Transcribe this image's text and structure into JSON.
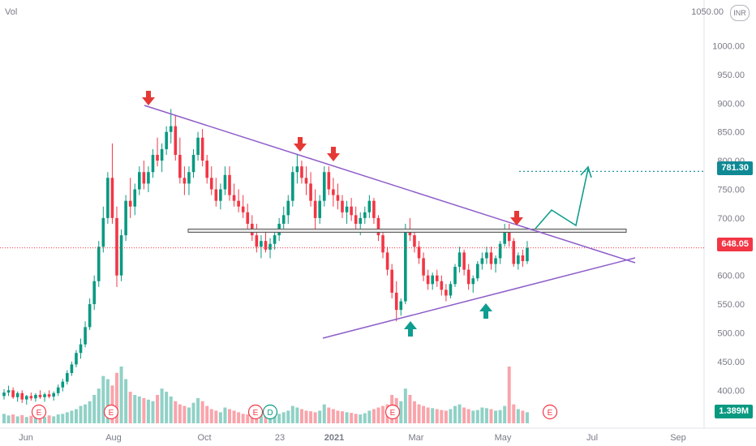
{
  "header": {
    "volume_label": "Vol",
    "currency": "INR"
  },
  "chart_data": {
    "type": "candlestick",
    "x_labels": [
      "Jun",
      "Aug",
      "Oct",
      "23",
      "2021",
      "Mar",
      "May",
      "Jul",
      "Sep"
    ],
    "y_ticks": [
      "1000.00",
      "950.00",
      "900.00",
      "850.00",
      "800.00",
      "750.00",
      "700.00",
      "650.00",
      "600.00",
      "550.00",
      "500.00",
      "450.00",
      "400.00"
    ],
    "y_top_tick": "1050.00",
    "ylim": [
      370,
      1060
    ],
    "price_labels": {
      "target": "781.30",
      "last": "648.05",
      "volume": "1.389M"
    },
    "levels": {
      "target": 781.3,
      "last": 648.05,
      "resistance": 678
    },
    "event_markers": [
      "E",
      "E",
      "E",
      "D",
      "E",
      "E"
    ],
    "candles": [
      [
        0,
        390,
        402,
        384,
        396
      ],
      [
        1,
        396,
        408,
        390,
        400
      ],
      [
        2,
        400,
        405,
        385,
        388
      ],
      [
        3,
        388,
        398,
        380,
        395
      ],
      [
        4,
        395,
        400,
        378,
        384
      ],
      [
        5,
        384,
        392,
        375,
        390
      ],
      [
        6,
        390,
        396,
        382,
        386
      ],
      [
        7,
        386,
        395,
        380,
        392
      ],
      [
        8,
        392,
        400,
        385,
        388
      ],
      [
        9,
        388,
        396,
        380,
        393
      ],
      [
        10,
        393,
        400,
        386,
        389
      ],
      [
        11,
        389,
        398,
        382,
        395
      ],
      [
        12,
        395,
        410,
        390,
        405
      ],
      [
        13,
        405,
        420,
        398,
        415
      ],
      [
        14,
        415,
        435,
        410,
        430
      ],
      [
        15,
        430,
        450,
        425,
        445
      ],
      [
        16,
        445,
        470,
        440,
        465
      ],
      [
        17,
        465,
        490,
        455,
        480
      ],
      [
        18,
        480,
        520,
        475,
        510
      ],
      [
        19,
        510,
        560,
        505,
        550
      ],
      [
        20,
        550,
        600,
        540,
        590
      ],
      [
        21,
        590,
        660,
        580,
        650
      ],
      [
        22,
        650,
        720,
        640,
        700
      ],
      [
        23,
        700,
        780,
        690,
        770
      ],
      [
        24,
        770,
        830,
        690,
        700
      ],
      [
        25,
        700,
        720,
        580,
        600
      ],
      [
        26,
        600,
        680,
        590,
        670
      ],
      [
        27,
        670,
        740,
        660,
        730
      ],
      [
        28,
        730,
        770,
        700,
        720
      ],
      [
        29,
        720,
        760,
        705,
        750
      ],
      [
        30,
        750,
        790,
        740,
        780
      ],
      [
        31,
        780,
        800,
        750,
        760
      ],
      [
        32,
        760,
        790,
        745,
        780
      ],
      [
        33,
        780,
        820,
        770,
        810
      ],
      [
        34,
        810,
        840,
        790,
        800
      ],
      [
        35,
        800,
        830,
        780,
        820
      ],
      [
        36,
        820,
        860,
        810,
        850
      ],
      [
        37,
        850,
        890,
        830,
        860
      ],
      [
        38,
        860,
        880,
        800,
        810
      ],
      [
        39,
        810,
        840,
        760,
        770
      ],
      [
        40,
        770,
        790,
        740,
        760
      ],
      [
        41,
        760,
        790,
        740,
        780
      ],
      [
        42,
        780,
        820,
        770,
        810
      ],
      [
        43,
        810,
        850,
        800,
        840
      ],
      [
        44,
        840,
        855,
        790,
        800
      ],
      [
        45,
        800,
        810,
        760,
        770
      ],
      [
        46,
        770,
        790,
        740,
        750
      ],
      [
        47,
        750,
        770,
        720,
        730
      ],
      [
        48,
        730,
        760,
        715,
        750
      ],
      [
        49,
        750,
        790,
        740,
        775
      ],
      [
        50,
        775,
        790,
        730,
        740
      ],
      [
        51,
        740,
        760,
        720,
        730
      ],
      [
        52,
        730,
        750,
        710,
        720
      ],
      [
        53,
        720,
        740,
        700,
        710
      ],
      [
        54,
        710,
        725,
        680,
        690
      ],
      [
        55,
        690,
        705,
        660,
        670
      ],
      [
        56,
        670,
        690,
        640,
        650
      ],
      [
        57,
        650,
        670,
        630,
        660
      ],
      [
        58,
        660,
        680,
        640,
        645
      ],
      [
        59,
        645,
        665,
        630,
        655
      ],
      [
        60,
        655,
        680,
        645,
        670
      ],
      [
        61,
        670,
        700,
        660,
        690
      ],
      [
        62,
        690,
        720,
        680,
        705
      ],
      [
        63,
        705,
        740,
        690,
        730
      ],
      [
        64,
        730,
        790,
        720,
        780
      ],
      [
        65,
        780,
        810,
        760,
        790
      ],
      [
        66,
        790,
        800,
        760,
        770
      ],
      [
        67,
        770,
        790,
        740,
        760
      ],
      [
        68,
        760,
        780,
        720,
        730
      ],
      [
        69,
        730,
        750,
        680,
        700
      ],
      [
        70,
        700,
        740,
        690,
        730
      ],
      [
        71,
        730,
        790,
        720,
        780
      ],
      [
        72,
        780,
        790,
        740,
        750
      ],
      [
        73,
        750,
        770,
        720,
        740
      ],
      [
        74,
        740,
        760,
        715,
        730
      ],
      [
        75,
        730,
        740,
        700,
        710
      ],
      [
        76,
        710,
        730,
        690,
        720
      ],
      [
        77,
        720,
        735,
        695,
        705
      ],
      [
        78,
        705,
        720,
        680,
        690
      ],
      [
        79,
        690,
        710,
        670,
        700
      ],
      [
        80,
        700,
        720,
        690,
        710
      ],
      [
        81,
        710,
        740,
        700,
        730
      ],
      [
        82,
        730,
        735,
        690,
        700
      ],
      [
        83,
        700,
        705,
        660,
        670
      ],
      [
        84,
        670,
        680,
        630,
        640
      ],
      [
        85,
        640,
        650,
        600,
        610
      ],
      [
        86,
        610,
        620,
        560,
        570
      ],
      [
        87,
        570,
        590,
        520,
        540
      ],
      [
        88,
        540,
        560,
        530,
        555
      ],
      [
        89,
        555,
        690,
        550,
        680
      ],
      [
        90,
        680,
        700,
        660,
        670
      ],
      [
        91,
        670,
        680,
        640,
        650
      ],
      [
        92,
        650,
        660,
        620,
        630
      ],
      [
        93,
        630,
        640,
        590,
        600
      ],
      [
        94,
        600,
        610,
        575,
        585
      ],
      [
        95,
        585,
        605,
        575,
        600
      ],
      [
        96,
        600,
        610,
        580,
        590
      ],
      [
        97,
        590,
        600,
        565,
        575
      ],
      [
        98,
        575,
        585,
        555,
        565
      ],
      [
        99,
        565,
        590,
        560,
        585
      ],
      [
        100,
        585,
        620,
        580,
        615
      ],
      [
        101,
        615,
        650,
        605,
        640
      ],
      [
        102,
        640,
        645,
        600,
        610
      ],
      [
        103,
        610,
        620,
        575,
        585
      ],
      [
        104,
        585,
        600,
        570,
        595
      ],
      [
        105,
        595,
        625,
        590,
        620
      ],
      [
        106,
        620,
        640,
        610,
        630
      ],
      [
        107,
        630,
        650,
        620,
        640
      ],
      [
        108,
        640,
        650,
        610,
        620
      ],
      [
        109,
        620,
        635,
        605,
        630
      ],
      [
        110,
        630,
        660,
        620,
        655
      ],
      [
        111,
        655,
        690,
        650,
        680
      ],
      [
        112,
        680,
        690,
        650,
        660
      ],
      [
        113,
        660,
        665,
        615,
        620
      ],
      [
        114,
        620,
        640,
        610,
        635
      ],
      [
        115,
        635,
        645,
        615,
        625
      ],
      [
        116,
        625,
        660,
        620,
        648
      ]
    ],
    "volume": [
      30,
      25,
      28,
      22,
      26,
      20,
      24,
      18,
      22,
      20,
      25,
      22,
      28,
      30,
      35,
      40,
      45,
      55,
      60,
      70,
      90,
      110,
      150,
      140,
      120,
      160,
      180,
      140,
      100,
      90,
      85,
      80,
      75,
      70,
      90,
      110,
      100,
      85,
      70,
      60,
      55,
      50,
      65,
      80,
      70,
      55,
      45,
      40,
      35,
      50,
      45,
      40,
      35,
      30,
      28,
      32,
      30,
      28,
      26,
      25,
      24,
      30,
      35,
      40,
      55,
      50,
      45,
      40,
      38,
      35,
      40,
      60,
      50,
      45,
      40,
      38,
      35,
      33,
      30,
      28,
      32,
      40,
      45,
      50,
      55,
      60,
      90,
      80,
      70,
      110,
      90,
      70,
      60,
      55,
      50,
      48,
      45,
      42,
      40,
      45,
      55,
      60,
      50,
      45,
      40,
      42,
      50,
      48,
      45,
      40,
      42,
      55,
      180,
      60,
      45,
      40,
      35
    ]
  }
}
